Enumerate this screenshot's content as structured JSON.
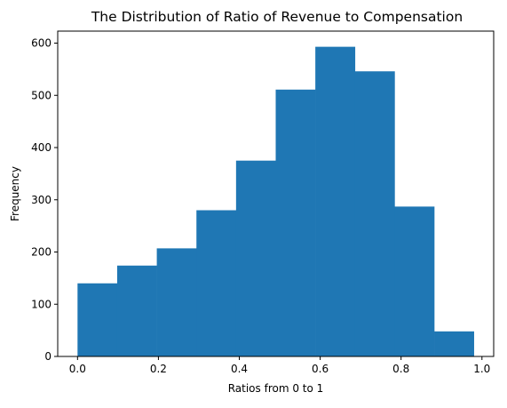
{
  "chart_data": {
    "type": "bar",
    "subtype": "histogram",
    "title": "The Distribution of Ratio of Revenue to Compensation",
    "xlabel": "Ratios from 0 to 1",
    "ylabel": "Frequency",
    "bin_edges": [
      0.0,
      0.098,
      0.196,
      0.294,
      0.392,
      0.49,
      0.588,
      0.686,
      0.784,
      0.882,
      0.98
    ],
    "values": [
      140,
      174,
      207,
      280,
      375,
      511,
      593,
      546,
      287,
      48
    ],
    "xlim": [
      -0.049,
      1.029
    ],
    "ylim": [
      0,
      623
    ],
    "x_ticks": [
      0.0,
      0.2,
      0.4,
      0.6,
      0.8,
      1.0
    ],
    "x_tick_labels": [
      "0.0",
      "0.2",
      "0.4",
      "0.6",
      "0.8",
      "1.0"
    ],
    "y_ticks": [
      0,
      100,
      200,
      300,
      400,
      500,
      600
    ],
    "y_tick_labels": [
      "0",
      "100",
      "200",
      "300",
      "400",
      "500",
      "600"
    ],
    "grid": false,
    "legend": "none",
    "bar_color": "#1f77b4",
    "axis_color": "#000000"
  }
}
